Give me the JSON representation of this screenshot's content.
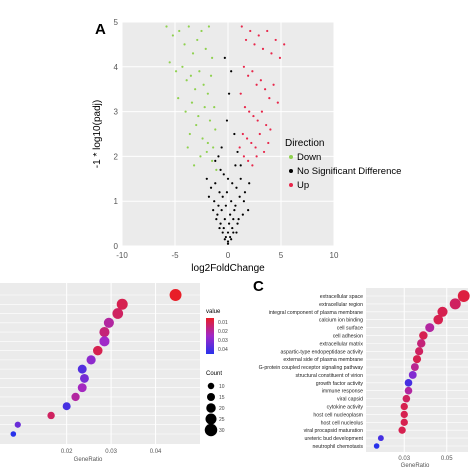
{
  "chart_data": [
    {
      "panel": "A",
      "type": "scatter",
      "xlabel": "log2FoldChange",
      "ylabel": "-1 * log10(padj)",
      "xlim": [
        -10,
        10
      ],
      "ylim": [
        0,
        5
      ],
      "x_ticks": [
        "-10",
        "-5",
        "0",
        "5",
        "10"
      ],
      "y_ticks": [
        "0",
        "1",
        "2",
        "3",
        "4",
        "5"
      ],
      "grid": true,
      "legend": {
        "title": "Direction",
        "position": "right",
        "entries": [
          {
            "label": "Down",
            "color": "#8fd14f"
          },
          {
            "label": "No Significant Difference",
            "color": "#000000"
          },
          {
            "label": "Up",
            "color": "#e8264a"
          }
        ]
      },
      "series": [
        {
          "name": "Down",
          "color": "#8fd14f",
          "x": [
            -5.8,
            -5.2,
            -4.6,
            -4.1,
            -3.7,
            -3.3,
            -2.9,
            -2.5,
            -2.1,
            -1.8,
            -1.5,
            -5.5,
            -4.9,
            -4.3,
            -3.9,
            -3.5,
            -3.1,
            -2.7,
            -2.3,
            -1.9,
            -1.6,
            -1.3,
            -4.7,
            -4.0,
            -3.4,
            -2.8,
            -2.2,
            -1.7,
            -1.2,
            -3.6,
            -3.0,
            -2.4,
            -1.9,
            -1.4,
            -2.6,
            -2.0,
            -1.5,
            -1.1,
            -3.8,
            -3.2
          ],
          "y": [
            4.9,
            4.7,
            4.8,
            4.5,
            4.9,
            4.3,
            4.6,
            4.8,
            4.4,
            4.9,
            4.2,
            4.1,
            3.9,
            4.0,
            3.7,
            3.8,
            3.5,
            3.9,
            3.6,
            3.4,
            3.8,
            3.1,
            3.3,
            3.0,
            3.2,
            2.9,
            3.1,
            2.8,
            2.6,
            2.5,
            2.7,
            2.4,
            2.3,
            2.2,
            2.0,
            2.1,
            1.9,
            1.7,
            2.2,
            1.8
          ]
        },
        {
          "name": "No Significant Difference",
          "color": "#000000",
          "x": [
            -2.0,
            -1.6,
            -1.2,
            -0.8,
            -0.4,
            0.0,
            0.4,
            0.8,
            1.2,
            1.6,
            2.0,
            -1.8,
            -1.3,
            -0.9,
            -0.5,
            -0.1,
            0.3,
            0.7,
            1.1,
            1.5,
            1.9,
            -1.4,
            -1.0,
            -0.6,
            -0.2,
            0.2,
            0.6,
            1.0,
            1.4,
            -1.1,
            -0.7,
            -0.3,
            0.1,
            0.5,
            0.9,
            -0.8,
            -0.4,
            0.0,
            0.4,
            0.8,
            -0.5,
            -0.2,
            0.2,
            0.5,
            -0.3,
            0.0,
            0.3,
            -0.6,
            -0.1,
            0.1,
            0.6,
            -0.9,
            0.9,
            -1.2,
            1.2,
            -0.3,
            0.3,
            -0.7,
            0.7,
            0.0
          ],
          "y": [
            1.5,
            1.3,
            1.4,
            1.2,
            1.6,
            1.5,
            1.4,
            1.3,
            1.5,
            1.2,
            1.4,
            1.1,
            1.0,
            0.9,
            1.1,
            1.2,
            1.0,
            0.9,
            1.1,
            1.0,
            0.8,
            0.8,
            0.7,
            0.8,
            0.9,
            0.7,
            0.8,
            0.6,
            0.7,
            0.6,
            0.5,
            0.6,
            0.5,
            0.6,
            0.5,
            0.4,
            0.4,
            0.3,
            0.4,
            0.3,
            0.3,
            0.2,
            0.2,
            0.3,
            0.15,
            0.1,
            0.15,
            2.2,
            2.8,
            3.4,
            2.5,
            2.0,
            2.1,
            1.9,
            1.8,
            4.2,
            3.9,
            1.7,
            1.8,
            0.05
          ]
        },
        {
          "name": "Up",
          "color": "#e8264a",
          "x": [
            1.3,
            1.7,
            2.1,
            2.5,
            2.9,
            3.3,
            3.7,
            4.1,
            4.5,
            4.9,
            5.3,
            1.5,
            1.9,
            2.3,
            2.7,
            3.1,
            3.5,
            3.9,
            4.3,
            4.7,
            1.2,
            1.6,
            2.0,
            2.4,
            2.8,
            3.2,
            3.6,
            4.0,
            1.4,
            1.8,
            2.2,
            2.6,
            3.0,
            3.4,
            1.1,
            1.5,
            1.9,
            2.3,
            2.7,
            3.8
          ],
          "y": [
            4.9,
            4.6,
            4.8,
            4.5,
            4.7,
            4.4,
            4.8,
            4.3,
            4.6,
            4.2,
            4.5,
            4.0,
            3.8,
            3.9,
            3.6,
            3.7,
            3.5,
            3.3,
            3.6,
            3.2,
            3.4,
            3.1,
            3.0,
            2.9,
            2.8,
            3.0,
            2.7,
            2.6,
            2.5,
            2.4,
            2.3,
            2.2,
            2.5,
            2.1,
            2.2,
            2.0,
            1.9,
            1.8,
            2.0,
            2.3
          ]
        }
      ]
    },
    {
      "panel": "B",
      "type": "scatter",
      "xlabel": "GeneRatio",
      "x_ticks": [
        "0.02",
        "0.03",
        "0.04"
      ],
      "xlim": [
        0.005,
        0.05
      ],
      "grid": true,
      "legend": {
        "color_title": "value",
        "color_ticks": [
          "0.01",
          "0.02",
          "0.03",
          "0.04"
        ],
        "size_title": "Count",
        "size_ticks": [
          "10",
          "15",
          "20",
          "25",
          "30"
        ],
        "position": "right"
      },
      "points": [
        {
          "x": 0.0445,
          "p": 0.005,
          "count": 28
        },
        {
          "x": 0.0325,
          "p": 0.01,
          "count": 25
        },
        {
          "x": 0.0315,
          "p": 0.012,
          "count": 24
        },
        {
          "x": 0.0295,
          "p": 0.02,
          "count": 22
        },
        {
          "x": 0.0285,
          "p": 0.015,
          "count": 22
        },
        {
          "x": 0.0285,
          "p": 0.025,
          "count": 22
        },
        {
          "x": 0.027,
          "p": 0.01,
          "count": 20
        },
        {
          "x": 0.0255,
          "p": 0.028,
          "count": 19
        },
        {
          "x": 0.0235,
          "p": 0.038,
          "count": 18
        },
        {
          "x": 0.024,
          "p": 0.032,
          "count": 18
        },
        {
          "x": 0.0235,
          "p": 0.024,
          "count": 18
        },
        {
          "x": 0.022,
          "p": 0.02,
          "count": 16
        },
        {
          "x": 0.02,
          "p": 0.04,
          "count": 15
        },
        {
          "x": 0.0165,
          "p": 0.012,
          "count": 13
        },
        {
          "x": 0.009,
          "p": 0.034,
          "count": 9
        },
        {
          "x": 0.008,
          "p": 0.045,
          "count": 7
        }
      ]
    },
    {
      "panel": "C",
      "type": "scatter",
      "xlabel": "GeneRatio",
      "x_ticks": [
        "0.03",
        "0.05"
      ],
      "xlim": [
        0.012,
        0.06
      ],
      "grid": true,
      "categories": [
        "extracellular space",
        "extracellular region",
        "integral component of plasma membrane",
        "calcium ion binding",
        "cell surface",
        "cell adhesion",
        "extracellular matrix",
        "aspartic-type endopeptidase activity",
        "external side of plasma membrane",
        "G-protein coupled receptor signaling pathway",
        "structural constituent of virion",
        "growth factor activity",
        "immune response",
        "viral capsid",
        "cytokine activity",
        "host cell nucleoplasm",
        "host cell nucleolus",
        "viral procapsid maturation",
        "ureteric bud development",
        "neutrophil chemotaxis"
      ],
      "points": [
        {
          "x": 0.058,
          "p": 0.008,
          "count": 30
        },
        {
          "x": 0.054,
          "p": 0.012,
          "count": 27
        },
        {
          "x": 0.048,
          "p": 0.01,
          "count": 24
        },
        {
          "x": 0.046,
          "p": 0.01,
          "count": 22
        },
        {
          "x": 0.042,
          "p": 0.02,
          "count": 20
        },
        {
          "x": 0.039,
          "p": 0.01,
          "count": 18
        },
        {
          "x": 0.038,
          "p": 0.015,
          "count": 18
        },
        {
          "x": 0.037,
          "p": 0.012,
          "count": 17
        },
        {
          "x": 0.036,
          "p": 0.01,
          "count": 17
        },
        {
          "x": 0.035,
          "p": 0.018,
          "count": 16
        },
        {
          "x": 0.034,
          "p": 0.03,
          "count": 16
        },
        {
          "x": 0.032,
          "p": 0.04,
          "count": 15
        },
        {
          "x": 0.032,
          "p": 0.02,
          "count": 15
        },
        {
          "x": 0.031,
          "p": 0.012,
          "count": 15
        },
        {
          "x": 0.03,
          "p": 0.01,
          "count": 14
        },
        {
          "x": 0.03,
          "p": 0.01,
          "count": 14
        },
        {
          "x": 0.03,
          "p": 0.01,
          "count": 14
        },
        {
          "x": 0.029,
          "p": 0.01,
          "count": 14
        },
        {
          "x": 0.019,
          "p": 0.04,
          "count": 9
        },
        {
          "x": 0.017,
          "p": 0.045,
          "count": 8
        }
      ]
    }
  ],
  "labels": {
    "panel_a": "A",
    "panel_c": "C"
  }
}
